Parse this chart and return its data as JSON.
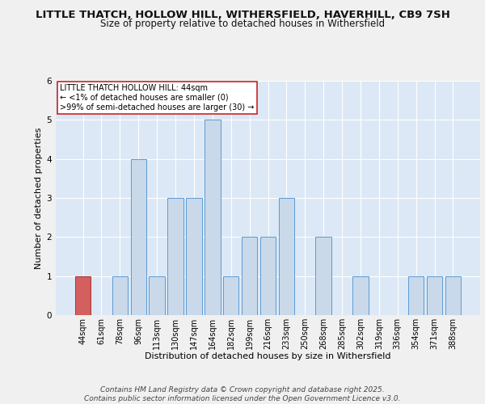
{
  "title_line1": "LITTLE THATCH, HOLLOW HILL, WITHERSFIELD, HAVERHILL, CB9 7SH",
  "title_line2": "Size of property relative to detached houses in Withersfield",
  "xlabel": "Distribution of detached houses by size in Withersfield",
  "ylabel": "Number of detached properties",
  "categories": [
    "44sqm",
    "61sqm",
    "78sqm",
    "96sqm",
    "113sqm",
    "130sqm",
    "147sqm",
    "164sqm",
    "182sqm",
    "199sqm",
    "216sqm",
    "233sqm",
    "250sqm",
    "268sqm",
    "285sqm",
    "302sqm",
    "319sqm",
    "336sqm",
    "354sqm",
    "371sqm",
    "388sqm"
  ],
  "values": [
    1,
    0,
    1,
    4,
    1,
    3,
    3,
    5,
    1,
    2,
    2,
    3,
    0,
    2,
    0,
    1,
    0,
    0,
    1,
    1,
    1
  ],
  "bar_color": "#c9d9ea",
  "bar_edge_color": "#5b9bd5",
  "highlight_bar_index": 0,
  "highlight_bar_color": "#d45f5f",
  "highlight_bar_edge_color": "#aa3333",
  "annotation_text": "LITTLE THATCH HOLLOW HILL: 44sqm\n← <1% of detached houses are smaller (0)\n>99% of semi-detached houses are larger (30) →",
  "annotation_box_color": "#ffffff",
  "annotation_box_edge_color": "#cc2222",
  "footnote_line1": "Contains HM Land Registry data © Crown copyright and database right 2025.",
  "footnote_line2": "Contains public sector information licensed under the Open Government Licence v3.0.",
  "ylim": [
    0,
    6
  ],
  "yticks": [
    0,
    1,
    2,
    3,
    4,
    5,
    6
  ],
  "fig_background": "#f0f0f0",
  "plot_background": "#dce8f5",
  "grid_color": "#ffffff",
  "title_fontsize": 9.5,
  "subtitle_fontsize": 8.5,
  "axis_label_fontsize": 8,
  "tick_fontsize": 7,
  "annotation_fontsize": 7,
  "footnote_fontsize": 6.5
}
